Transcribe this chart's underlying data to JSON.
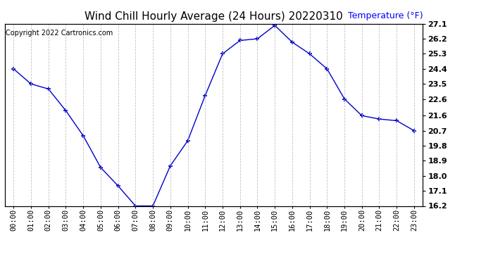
{
  "title": "Wind Chill Hourly Average (24 Hours) 20220310",
  "copyright_text": "Copyright 2022 Cartronics.com",
  "ylabel": "Temperature (°F)",
  "hours": [
    "00:00",
    "01:00",
    "02:00",
    "03:00",
    "04:00",
    "05:00",
    "06:00",
    "07:00",
    "08:00",
    "09:00",
    "10:00",
    "11:00",
    "12:00",
    "13:00",
    "14:00",
    "15:00",
    "16:00",
    "17:00",
    "18:00",
    "19:00",
    "20:00",
    "21:00",
    "22:00",
    "23:00"
  ],
  "values": [
    24.4,
    23.5,
    23.2,
    21.9,
    20.4,
    18.5,
    17.4,
    16.2,
    16.2,
    18.6,
    20.1,
    22.8,
    25.3,
    26.1,
    26.2,
    27.0,
    26.0,
    25.3,
    24.4,
    22.6,
    21.6,
    21.4,
    21.3,
    20.7
  ],
  "line_color": "#0000cc",
  "marker": "+",
  "marker_size": 5,
  "marker_linewidth": 1.2,
  "line_width": 1.0,
  "background_color": "#ffffff",
  "grid_color": "#bbbbbb",
  "ylim_min": 16.2,
  "ylim_max": 27.1,
  "yticks": [
    16.2,
    17.1,
    18.0,
    18.9,
    19.8,
    20.7,
    21.6,
    22.6,
    23.5,
    24.4,
    25.3,
    26.2,
    27.1
  ],
  "title_fontsize": 11,
  "copyright_fontsize": 7,
  "ylabel_fontsize": 9,
  "tick_fontsize": 7.5,
  "ytick_fontsize": 8
}
